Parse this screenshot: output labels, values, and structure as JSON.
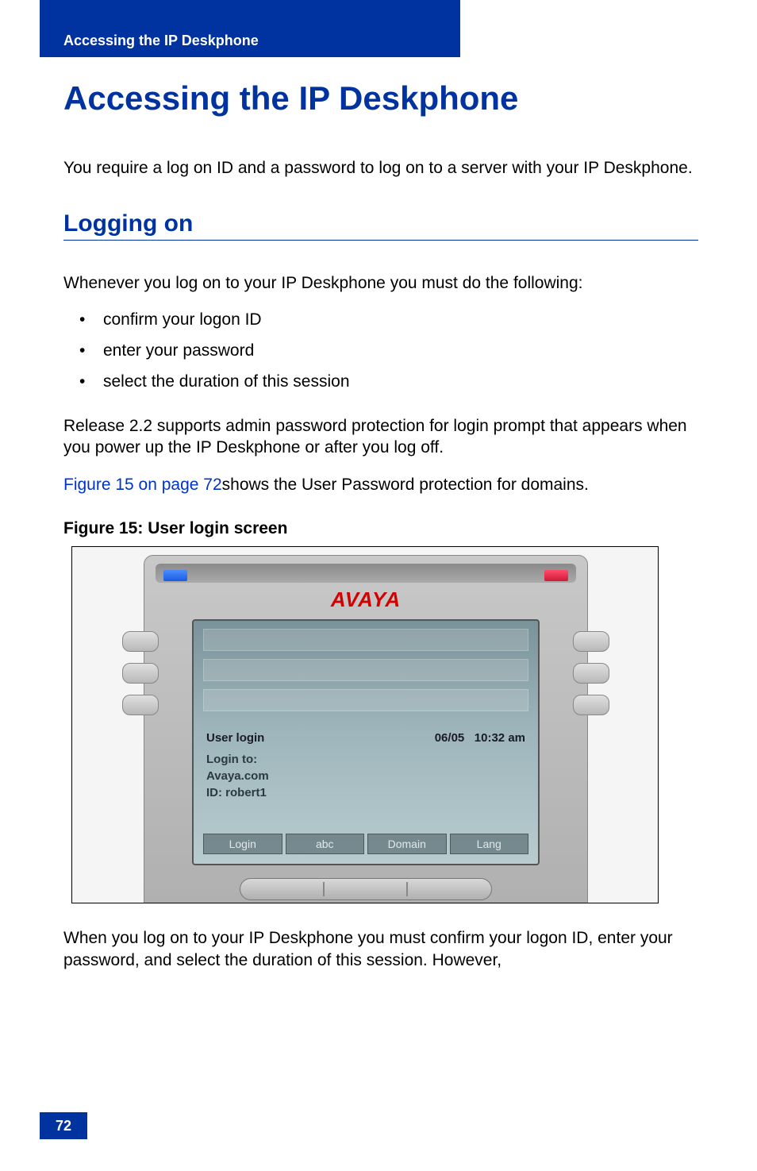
{
  "header": {
    "breadcrumb": "Accessing the IP Deskphone"
  },
  "title": "Accessing the IP Deskphone",
  "intro": "You require a log on ID and a password to log on to a server with your IP Deskphone.",
  "section": {
    "title": "Logging on"
  },
  "lead": "Whenever you log on to your IP Deskphone you must do the following:",
  "bullets": [
    "confirm your logon ID",
    "enter your password",
    "select the duration of this session"
  ],
  "release_note": "Release 2.2 supports admin password protection for login prompt that appears when you power up the IP Deskphone or after you log off.",
  "figref": {
    "link": "Figure 15 on page 72",
    "rest": "shows the User Password protection for domains."
  },
  "figure": {
    "caption": "Figure 15: User login screen",
    "brand": "AVAYA",
    "screen_title": "User login",
    "date": "06/05",
    "time": "10:32 am",
    "line1": "Login to:",
    "line2": "Avaya.com",
    "line3": "ID: robert1",
    "softkeys": [
      "Login",
      "abc",
      "Domain",
      "Lang"
    ],
    "colors": {
      "brand": "#d40000",
      "accent": "#0033a0",
      "led_blue": "#1a5ce0",
      "led_red": "#d01a3a",
      "screen_bg_top": "#7a9299",
      "screen_bg_bottom": "#b8cccf"
    }
  },
  "after_figure": "When you log on to your IP Deskphone you must confirm your logon ID, enter your password, and select the duration of this session. However,",
  "page_number": "72"
}
